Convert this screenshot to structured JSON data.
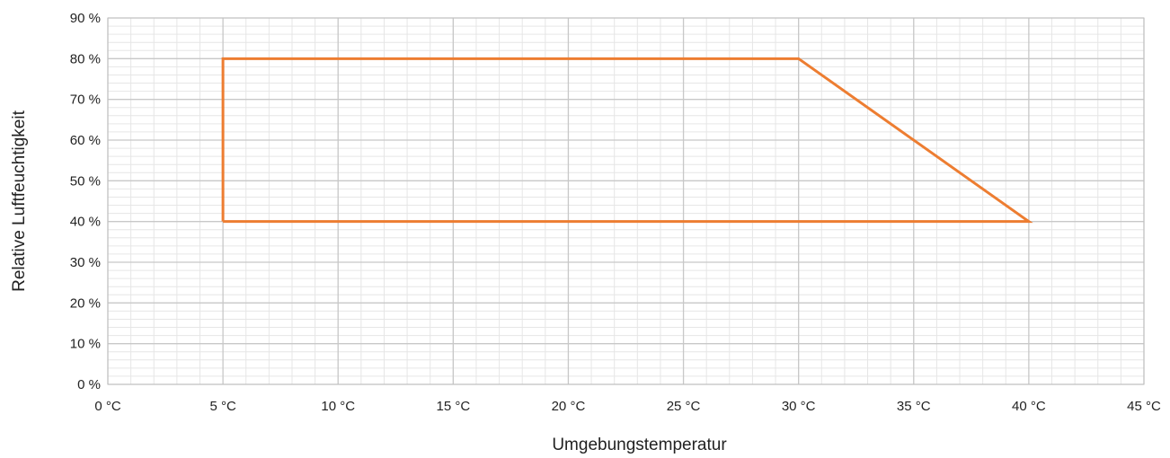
{
  "chart_data": {
    "type": "line",
    "title": "",
    "xlabel": "Umgebungstemperatur",
    "ylabel": "Relative Luftfeuchtigkeit",
    "xlim": [
      0,
      45
    ],
    "ylim": [
      0,
      90
    ],
    "x_ticks": [
      0,
      5,
      10,
      15,
      20,
      25,
      30,
      35,
      40,
      45
    ],
    "y_ticks": [
      0,
      10,
      20,
      30,
      40,
      50,
      60,
      70,
      80,
      90
    ],
    "x_tick_labels": [
      "0 °C",
      "5 °C",
      "10 °C",
      "15 °C",
      "20 °C",
      "25 °C",
      "30 °C",
      "35 °C",
      "40 °C",
      "45 °C"
    ],
    "y_tick_labels": [
      "0 %",
      "10 %",
      "20 %",
      "30 %",
      "40 %",
      "50 %",
      "60 %",
      "70 %",
      "80 %",
      "90 %"
    ],
    "grid": true,
    "series": [
      {
        "color": "#ED7D31",
        "points": [
          [
            5,
            40
          ],
          [
            5,
            80
          ],
          [
            30,
            80
          ],
          [
            40,
            40
          ],
          [
            5,
            40
          ]
        ]
      }
    ]
  },
  "colors": {
    "series": "#ED7D31",
    "major_grid": "#c8c8c8",
    "minor_grid": "#e6e6e6",
    "plot_border": "#bfbfbf"
  }
}
